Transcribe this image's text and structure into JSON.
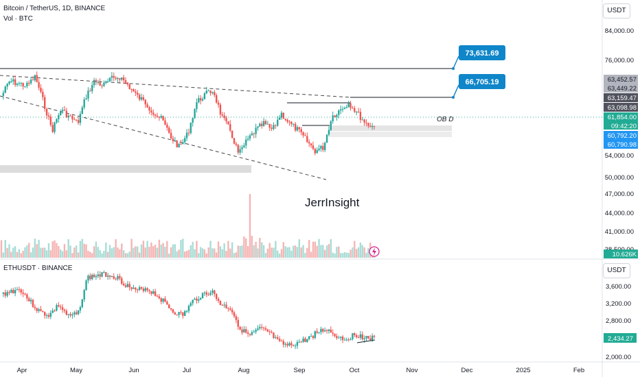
{
  "btc_pane": {
    "title": "Bitcoin / TetherUS, 1D, BINANCE",
    "volume_label": "Vol · BTC",
    "currency_badge": "USDT",
    "watermark": "JerrInsight",
    "ob_label": "OB D",
    "callouts": [
      "73,631.69",
      "66,705.19"
    ],
    "axis_ticks": [
      "84,000.00",
      "76,000.00",
      "54,000.00",
      "50,000.00",
      "47,000.00",
      "44,000.00",
      "41,000.00",
      "38,500.00"
    ],
    "price_labels": [
      {
        "text": "63,452.57",
        "bg": "#b2b5be",
        "fg": "#131722"
      },
      {
        "text": "63,449.22",
        "bg": "#b2b5be",
        "fg": "#131722"
      },
      {
        "text": "63,159.47",
        "bg": "#50535e",
        "fg": "#ffffff"
      },
      {
        "text": "63,098.98",
        "bg": "#50535e",
        "fg": "#ffffff"
      },
      {
        "text": "61,854.00",
        "bg": "#22ab94",
        "fg": "#ffffff"
      },
      {
        "text": "09:42:20",
        "bg": "#22ab94",
        "fg": "#ffffff"
      },
      {
        "text": "60,792.20",
        "bg": "#2196f3",
        "fg": "#ffffff"
      },
      {
        "text": "60,790.98",
        "bg": "#2196f3",
        "fg": "#ffffff"
      }
    ],
    "volume_value": "10.626K"
  },
  "eth_pane": {
    "title": "ETHUSDT · BINANCE",
    "currency_badge": "USDT",
    "axis_ticks": [
      "3,600.00",
      "3,200.00",
      "2,800.00",
      "2,000.00"
    ],
    "last_price": "2,434.27"
  },
  "time_axis": {
    "labels": [
      "Apr",
      "May",
      "Jun",
      "Jul",
      "Aug",
      "Sep",
      "Oct",
      "Nov",
      "Dec",
      "2025",
      "Feb"
    ]
  },
  "colors": {
    "up": "#26a69a",
    "down": "#ef5350",
    "callout": "#0f86c9",
    "zone": "#dcdcdc",
    "accent_flash": "#d7268c"
  }
}
